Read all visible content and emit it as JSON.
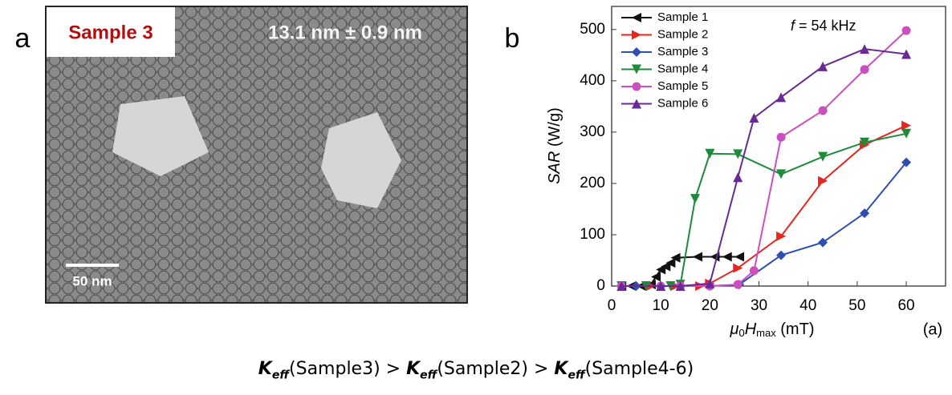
{
  "panel_a": {
    "label": "a",
    "sample": "Sample 3",
    "size": "13.1 nm ± 0.9 nm",
    "scale_bar": "50 nm"
  },
  "panel_b_label": "b",
  "chart_data": {
    "type": "line",
    "xlabel": [
      "μ",
      "0",
      "H",
      "max",
      " (mT)"
    ],
    "ylabel": [
      "SAR",
      " (W/g)"
    ],
    "annotation": [
      "f",
      " = 54 kHz"
    ],
    "tag": "(a)",
    "xlim": [
      0,
      68
    ],
    "ylim": [
      0,
      545
    ],
    "xticks": [
      0,
      10,
      20,
      30,
      40,
      50,
      60
    ],
    "yticks": [
      0,
      100,
      200,
      300,
      400,
      500
    ],
    "legend": "upper-left",
    "series": [
      {
        "name": "Sample 1",
        "color": "#111111",
        "marker": "triangle-left",
        "x": [
          2,
          4,
          6,
          8,
          9,
          10,
          11,
          12,
          13,
          17.5,
          21,
          23.5,
          26
        ],
        "values": [
          0,
          0,
          0,
          3,
          18,
          32,
          38,
          45,
          55,
          57,
          57,
          57,
          57
        ]
      },
      {
        "name": "Sample 2",
        "color": "#e8251f",
        "marker": "triangle-right",
        "x": [
          8,
          13,
          18,
          20,
          25.7,
          34.5,
          43,
          51.5,
          60
        ],
        "values": [
          0,
          0,
          0,
          5,
          35,
          97,
          205,
          275,
          313
        ]
      },
      {
        "name": "Sample 3",
        "color": "#2f4fb0",
        "marker": "diamond",
        "x": [
          2,
          5,
          10,
          14,
          20,
          26,
          34.5,
          43,
          51.5,
          60
        ],
        "values": [
          0,
          0,
          0,
          0,
          0,
          3,
          60,
          85,
          142,
          241
        ]
      },
      {
        "name": "Sample 4",
        "color": "#1e8a3a",
        "marker": "triangle-down",
        "x": [
          2,
          7,
          12,
          14,
          17,
          20,
          25.7,
          34.5,
          43,
          51.5,
          60
        ],
        "values": [
          0,
          0,
          0,
          3,
          170,
          258,
          257,
          218,
          252,
          280,
          297
        ]
      },
      {
        "name": "Sample 5",
        "color": "#cc4fc0",
        "marker": "circle",
        "x": [
          2,
          10,
          14,
          20,
          25.7,
          29,
          34.5,
          43,
          51.5,
          60
        ],
        "values": [
          0,
          0,
          0,
          0,
          3,
          30,
          290,
          342,
          422,
          498
        ]
      },
      {
        "name": "Sample 6",
        "color": "#6a2a94",
        "marker": "triangle-up",
        "x": [
          2,
          10,
          14,
          20,
          25.7,
          29,
          34.5,
          43,
          51.5,
          60
        ],
        "values": [
          0,
          0,
          0,
          5,
          212,
          328,
          368,
          428,
          462,
          452
        ]
      }
    ]
  },
  "caption": [
    {
      "symbol": "K",
      "subscript": "eff",
      "text": "(Sample3) > "
    },
    {
      "symbol": "K",
      "subscript": "eff",
      "text": "(Sample2) > "
    },
    {
      "symbol": "K",
      "subscript": "eff",
      "text": "(Sample4-6)"
    }
  ]
}
